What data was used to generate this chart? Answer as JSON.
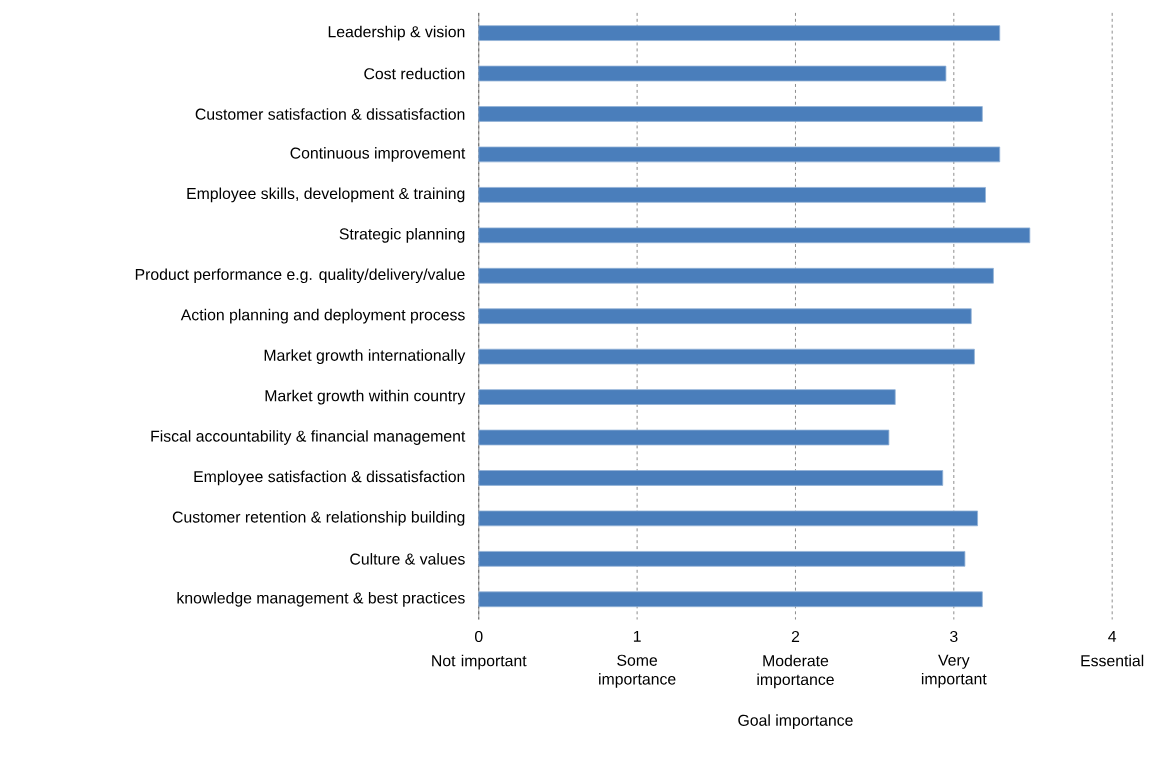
{
  "chart_data": {
    "type": "bar",
    "orientation": "horizontal",
    "xlabel": "Goal importance",
    "categories": [
      "Leadership & vision",
      "Cost reduction",
      "Customer satisfaction & dissatisfaction",
      "Continuous improvement",
      "Employee skills, development & training",
      "Strategic planning",
      "Product performance e.g. quality/delivery/value",
      "Action planning and deployment process",
      "Market growth internationally",
      "Market growth within country",
      "Fiscal accountability & financial management",
      "Employee satisfaction & dissatisfaction",
      "Customer retention & relationship building",
      "Culture & values",
      "knowledge management & best practices"
    ],
    "values": [
      3.29,
      2.95,
      3.18,
      3.29,
      3.2,
      3.48,
      3.25,
      3.11,
      3.13,
      2.63,
      2.59,
      2.93,
      3.15,
      3.07,
      3.18
    ],
    "color": "#4a7ebb",
    "xlim": [
      0,
      4
    ],
    "xticks": [
      0,
      1,
      2,
      3,
      4
    ],
    "grid": "x",
    "annotations": [
      "Not important",
      "Some importance",
      "Moderate importance",
      "Very important",
      "Essential"
    ]
  }
}
